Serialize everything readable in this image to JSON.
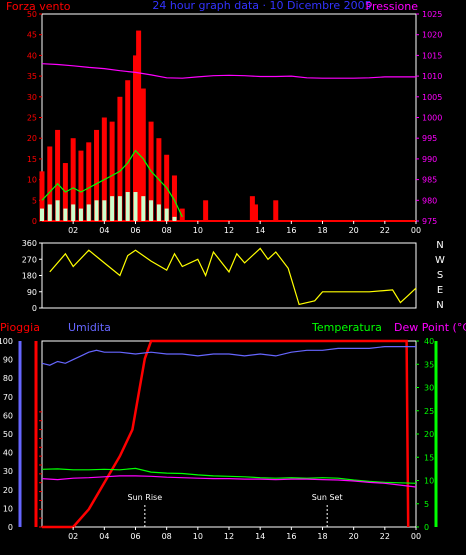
{
  "colors": {
    "background": "#000000",
    "frame": "#ffffff",
    "wind": "#ff0000",
    "wind_avg": "#00ff00",
    "wind_min": "#ccffcc",
    "pressure": "#ff00ff",
    "title": "#3333ff",
    "direction": "#ffff00",
    "rain": "#ff0000",
    "humidity": "#6666ff",
    "temperature": "#00ff00",
    "dew_point": "#ff00ff",
    "sun": "#ffffff"
  },
  "header": {
    "left": "Forza vento",
    "center": "24 hour graph data · 10 Dicembre 2005",
    "right": "Pressione"
  },
  "x_ticks": [
    "02",
    "04",
    "06",
    "08",
    "10",
    "12",
    "14",
    "16",
    "18",
    "20",
    "22",
    "00"
  ],
  "chart_data": [
    {
      "type": "line",
      "panel": "wind-pressure",
      "x_unit": "hours",
      "xlim": [
        0,
        24
      ],
      "ylim_left": [
        0,
        50
      ],
      "ylim_right": [
        975,
        1025
      ],
      "y_ticks_left": [
        0,
        5,
        10,
        15,
        20,
        25,
        30,
        35,
        40,
        45,
        50
      ],
      "y_ticks_right": [
        975,
        980,
        985,
        990,
        995,
        1000,
        1005,
        1010,
        1015,
        1020,
        1025
      ],
      "series": [
        {
          "name": "Forza vento",
          "style": "bars",
          "color": "#ff0000",
          "x": [
            0.0,
            0.5,
            1.0,
            1.5,
            2.0,
            2.5,
            3.0,
            3.5,
            4.0,
            4.5,
            5.0,
            5.5,
            6.0,
            6.2,
            6.5,
            7.0,
            7.5,
            8.0,
            8.5,
            9.0,
            10.5,
            13.5,
            13.7,
            15.0
          ],
          "y": [
            12,
            18,
            22,
            14,
            20,
            17,
            19,
            22,
            25,
            24,
            30,
            34,
            40,
            46,
            32,
            24,
            20,
            16,
            11,
            3,
            5,
            6,
            4,
            5
          ]
        },
        {
          "name": "",
          "color": "#00ff00",
          "x": [
            0.0,
            0.5,
            1.0,
            1.5,
            2.0,
            2.5,
            3.0,
            3.5,
            4.0,
            4.5,
            5.0,
            5.5,
            6.0,
            6.5,
            7.0,
            7.5,
            8.0,
            8.5,
            9.0
          ],
          "y": [
            5,
            7,
            9,
            7,
            8,
            7,
            8,
            9,
            10,
            11,
            12,
            14,
            17,
            15,
            12,
            10,
            8,
            5,
            1
          ]
        },
        {
          "name": "",
          "style": "bars",
          "color": "#ccffcc",
          "x": [
            0.0,
            0.5,
            1.0,
            1.5,
            2.0,
            2.5,
            3.0,
            3.5,
            4.0,
            4.5,
            5.0,
            5.5,
            6.0,
            6.5,
            7.0,
            7.5,
            8.0,
            8.5
          ],
          "y": [
            3,
            4,
            5,
            3,
            4,
            3,
            4,
            5,
            5,
            6,
            6,
            7,
            7,
            6,
            5,
            4,
            3,
            1
          ]
        },
        {
          "name": "Pressione",
          "axis": "right",
          "color": "#ff00ff",
          "x": [
            0,
            1,
            2,
            3,
            4,
            5,
            6,
            7,
            8,
            9,
            10,
            11,
            12,
            13,
            14,
            15,
            16,
            17,
            18,
            19,
            20,
            21,
            22,
            23,
            24
          ],
          "y": [
            1013,
            1012.8,
            1012.5,
            1012.1,
            1011.8,
            1011.3,
            1010.9,
            1010.3,
            1009.6,
            1009.5,
            1009.8,
            1010.1,
            1010.2,
            1010.1,
            1009.9,
            1009.9,
            1010.0,
            1009.6,
            1009.5,
            1009.5,
            1009.5,
            1009.6,
            1009.8,
            1009.8,
            1009.8
          ]
        }
      ]
    },
    {
      "type": "line",
      "panel": "wind-direction",
      "x_unit": "hours",
      "xlim": [
        0,
        24
      ],
      "ylim": [
        0,
        360
      ],
      "y_ticks": [
        0,
        90,
        180,
        270,
        360
      ],
      "compass_labels": [
        "N",
        "W",
        "S",
        "E",
        "N"
      ],
      "series": [
        {
          "name": "",
          "color": "#ffff00",
          "x": [
            0.5,
            1.5,
            2.0,
            3.0,
            4.0,
            5.0,
            5.5,
            6.0,
            7.0,
            8.0,
            8.5,
            9.0,
            10.0,
            10.5,
            11.0,
            12.0,
            12.5,
            13.0,
            14.0,
            14.5,
            15.0,
            15.8,
            16.5,
            17.5,
            18.0,
            19.0,
            21.0,
            22.5,
            23.0,
            23.5,
            24.0
          ],
          "y": [
            200,
            300,
            230,
            320,
            250,
            180,
            290,
            320,
            260,
            210,
            300,
            230,
            270,
            180,
            310,
            200,
            300,
            250,
            330,
            270,
            310,
            220,
            20,
            40,
            90,
            90,
            90,
            100,
            30,
            70,
            110
          ]
        }
      ]
    },
    {
      "type": "line",
      "panel": "rain-humidity-temperature",
      "x_unit": "hours",
      "xlim": [
        0,
        24
      ],
      "ylim_left": [
        0,
        100
      ],
      "ylim_right": [
        0,
        40
      ],
      "y_ticks_left": [
        0,
        10,
        20,
        30,
        40,
        50,
        60,
        70,
        80,
        90,
        100
      ],
      "y_ticks_right": [
        0,
        5,
        10,
        15,
        20,
        25,
        30,
        35,
        40
      ],
      "left_labels": [
        "Pioggia",
        "Umidita"
      ],
      "right_labels": [
        "Temperatura",
        "Dew Point (°C)"
      ],
      "annotations": [
        {
          "label": "Sun Rise",
          "x": 6.6
        },
        {
          "label": "Sun Set",
          "x": 18.3
        }
      ],
      "series": [
        {
          "name": "Pioggia",
          "axis": "rain",
          "color": "#ff0000",
          "x": [
            0.0,
            1.0,
            2.0,
            3.0,
            4.0,
            5.0,
            5.8,
            6.2,
            6.6,
            7.0,
            8.0,
            12.0,
            16.0,
            20.0,
            23.4,
            23.5
          ],
          "y": [
            0,
            0,
            0,
            20,
            50,
            80,
            110,
            150,
            190,
            210,
            210,
            210,
            210,
            210,
            210,
            0
          ]
        },
        {
          "name": "Umidita",
          "axis": "humidity",
          "color": "#6666ff",
          "x": [
            0,
            0.5,
            1,
            1.5,
            2,
            2.5,
            3,
            3.5,
            4,
            5,
            6,
            7,
            8,
            9,
            10,
            11,
            12,
            13,
            14,
            15,
            16,
            17,
            18,
            19,
            20,
            21,
            22,
            23,
            24
          ],
          "y": [
            88,
            87,
            89,
            88,
            90,
            92,
            94,
            95,
            94,
            94,
            93,
            94,
            93,
            93,
            92,
            93,
            93,
            92,
            93,
            92,
            94,
            95,
            95,
            96,
            96,
            96,
            97,
            97,
            97
          ]
        },
        {
          "name": "Temperatura",
          "axis": "right",
          "color": "#00ff00",
          "x": [
            0,
            1,
            2,
            3,
            4,
            5,
            6,
            7,
            8,
            9,
            10,
            11,
            12,
            13,
            14,
            15,
            16,
            17,
            18,
            19,
            20,
            21,
            22,
            23,
            24
          ],
          "y": [
            12.4,
            12.5,
            12.3,
            12.3,
            12.4,
            12.3,
            12.6,
            11.8,
            11.6,
            11.5,
            11.2,
            11.0,
            10.9,
            10.8,
            10.6,
            10.5,
            10.6,
            10.5,
            10.6,
            10.5,
            10.1,
            9.8,
            9.6,
            9.5,
            9.4
          ]
        },
        {
          "name": "Dew Point (°C)",
          "axis": "right",
          "color": "#ff00ff",
          "x": [
            0,
            1,
            2,
            3,
            4,
            5,
            6,
            7,
            8,
            9,
            10,
            11,
            12,
            13,
            14,
            15,
            16,
            17,
            18,
            19,
            20,
            21,
            22,
            23,
            24
          ],
          "y": [
            10.4,
            10.2,
            10.5,
            10.6,
            10.8,
            11.0,
            11.0,
            10.9,
            10.7,
            10.6,
            10.5,
            10.4,
            10.4,
            10.3,
            10.3,
            10.2,
            10.3,
            10.3,
            10.2,
            10.1,
            9.9,
            9.6,
            9.4,
            9.0,
            8.6
          ]
        }
      ]
    }
  ]
}
